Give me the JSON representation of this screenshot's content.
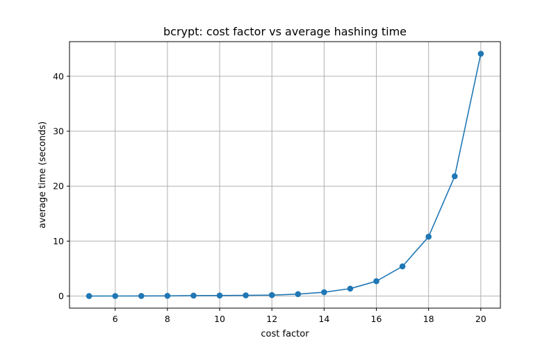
{
  "chart_data": {
    "type": "line",
    "title": "bcrypt: cost factor vs average hashing time",
    "xlabel": "cost factor",
    "ylabel": "average time (seconds)",
    "x": [
      5,
      6,
      7,
      8,
      9,
      10,
      11,
      12,
      13,
      14,
      15,
      16,
      17,
      18,
      19,
      20
    ],
    "series": [
      {
        "values": [
          0.0,
          0.01,
          0.02,
          0.04,
          0.08,
          0.1,
          0.13,
          0.18,
          0.35,
          0.7,
          1.35,
          2.7,
          5.4,
          10.8,
          21.8,
          44.1
        ],
        "color": "#1f77b4",
        "marker": "circle"
      }
    ],
    "xlim": [
      4.25,
      20.75
    ],
    "ylim": [
      -2.2,
      46.3
    ],
    "xticks": [
      6,
      8,
      10,
      12,
      14,
      16,
      18,
      20
    ],
    "yticks": [
      0,
      10,
      20,
      30,
      40
    ],
    "grid": true,
    "colors": {
      "line": "#1f77b4",
      "grid": "#b0b0b0",
      "axes": "#000000"
    }
  }
}
